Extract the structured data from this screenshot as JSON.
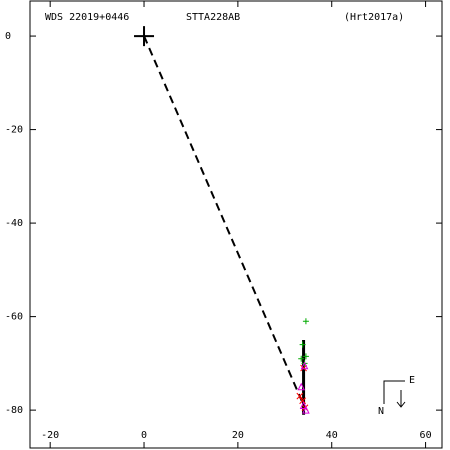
{
  "chart_data": {
    "type": "scatter",
    "labels": {
      "left": "WDS 22019+0446",
      "center": "STTA228AB",
      "right": "(Hrt2017a)"
    },
    "compass": {
      "north": "N",
      "east": "E"
    },
    "xlim": [
      -24.3,
      63.5
    ],
    "ylim": [
      -88.1,
      7.5
    ],
    "xticks": [
      -20,
      0,
      20,
      40,
      60
    ],
    "yticks": [
      0,
      -20,
      -40,
      -60,
      -80
    ],
    "lines": [
      {
        "color": "#000000",
        "dash": true,
        "x": [
          0,
          33.6
        ],
        "y": [
          0,
          -78
        ]
      },
      {
        "color": "#000000",
        "dash": false,
        "x": [
          34,
          34
        ],
        "y": [
          -65,
          -81
        ]
      }
    ],
    "series": [
      {
        "color": "#000000",
        "marker": "big-plus",
        "x": [
          0
        ],
        "y": [
          0
        ]
      },
      {
        "color": "#00aa00",
        "marker": "plus",
        "x": [
          34.5,
          33.5,
          34.5,
          34.2,
          33.8
        ],
        "y": [
          -61,
          -69,
          -68.5,
          -70,
          -66
        ]
      },
      {
        "color": "#ff0000",
        "marker": "x",
        "x": [
          33.2,
          33.8,
          34.3,
          34
        ],
        "y": [
          -77,
          -78,
          -79.5,
          -71
        ]
      },
      {
        "color": "#dd00dd",
        "marker": "triangle",
        "x": [
          33.5,
          34,
          34.5,
          34.2
        ],
        "y": [
          -75,
          -79,
          -80,
          -70.5
        ]
      }
    ]
  }
}
